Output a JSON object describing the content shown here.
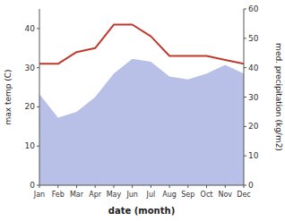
{
  "chart_data": {
    "type": "line",
    "xlabel": "date (month)",
    "ylabel": "max temp (C)",
    "y2label": "med. precipitation (kg/m2)",
    "categories": [
      "Jan",
      "Feb",
      "Mar",
      "Apr",
      "May",
      "Jun",
      "Jul",
      "Aug",
      "Sep",
      "Oct",
      "Nov",
      "Dec"
    ],
    "series": [
      {
        "type": "area",
        "axis": "y2",
        "color": "#b8c0e8",
        "values": [
          31,
          23,
          25,
          30,
          38,
          43,
          42,
          37,
          36,
          38,
          41,
          38
        ]
      },
      {
        "type": "line",
        "color": "#c0392b",
        "values": [
          31,
          31,
          34,
          35,
          41,
          41,
          38,
          33,
          33,
          33,
          32,
          31
        ]
      }
    ],
    "ylim": [
      0,
      45
    ],
    "yticks": [
      0,
      10,
      20,
      30,
      40
    ],
    "y2lim": [
      0,
      60
    ],
    "y2ticks": [
      0,
      10,
      20,
      30,
      40,
      50,
      60
    ],
    "grid": false
  }
}
